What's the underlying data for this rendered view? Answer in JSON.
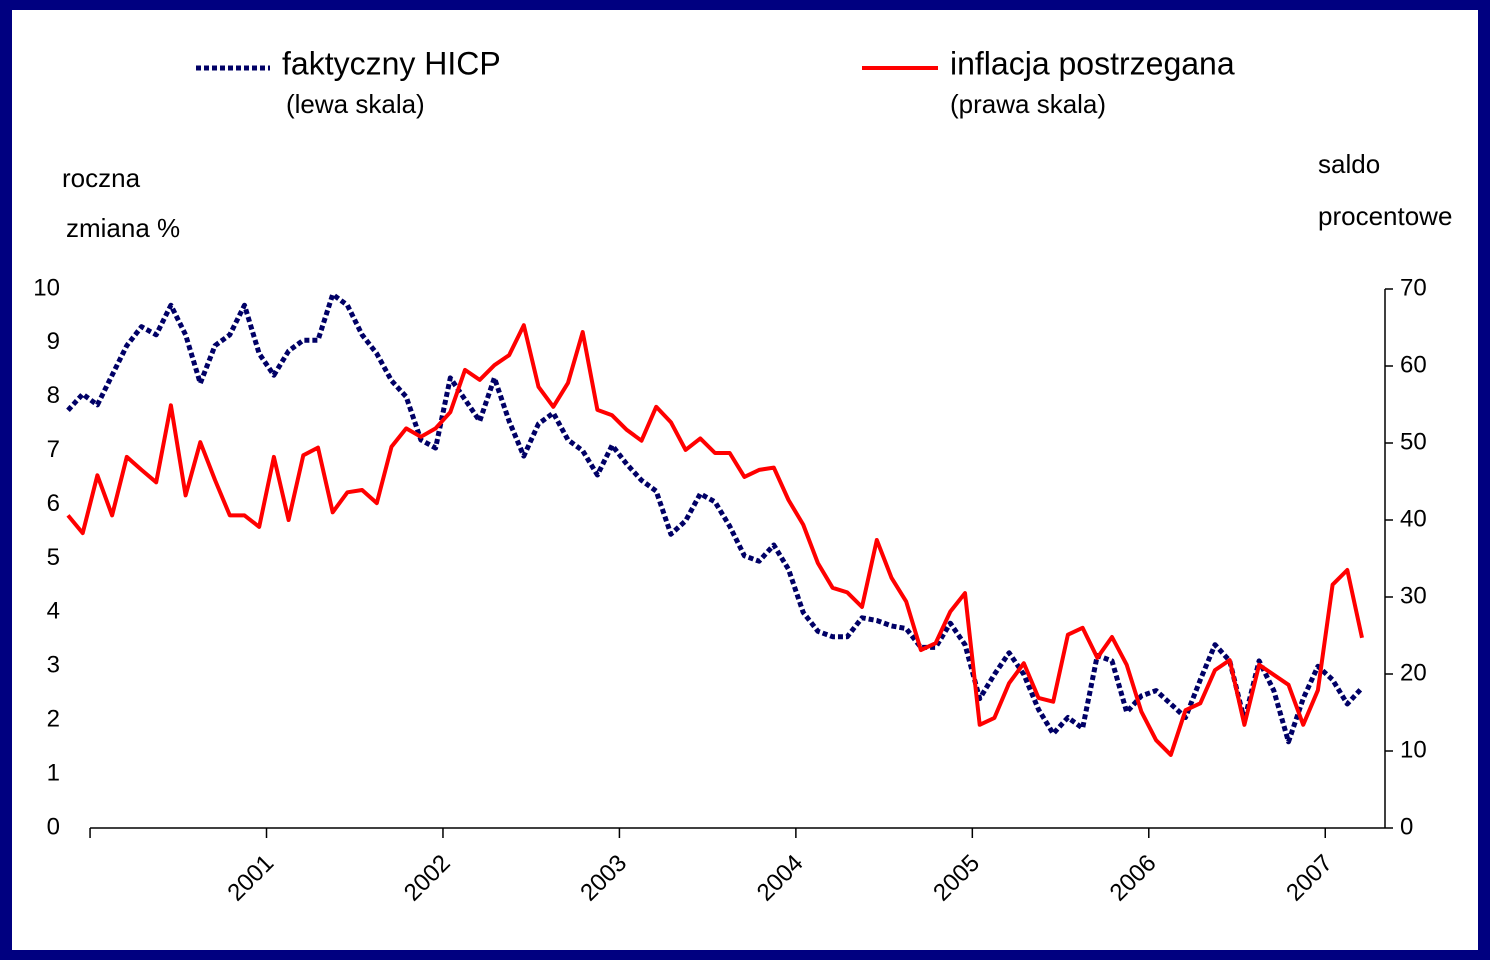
{
  "chart_data": {
    "type": "line",
    "ylabel": [
      "roczna",
      "zmiana %"
    ],
    "y2label": [
      "saldo",
      "procentowe"
    ],
    "x": [
      0,
      1,
      2,
      3,
      4,
      5,
      6,
      7,
      8,
      9,
      10,
      11,
      12,
      13,
      14,
      15,
      16,
      17,
      18,
      19,
      20,
      21,
      22,
      23,
      24,
      25,
      26,
      27,
      28,
      29,
      30,
      31,
      32,
      33,
      34,
      35,
      36,
      37,
      38,
      39,
      40,
      41,
      42,
      43,
      44,
      45,
      46,
      47,
      48,
      49,
      50,
      51,
      52,
      53,
      54,
      55,
      56,
      57,
      58,
      59,
      60,
      61,
      62,
      63,
      64,
      65,
      66,
      67,
      68,
      69,
      70,
      71,
      72,
      73,
      74,
      75,
      76,
      77,
      78,
      79,
      80,
      81,
      82,
      83,
      84,
      85,
      86,
      87,
      88
    ],
    "xlim": [
      0,
      88
    ],
    "xticks": [
      {
        "value": 1.5,
        "label": null
      },
      {
        "value": 13.5,
        "label": "2001"
      },
      {
        "value": 25.5,
        "label": "2002"
      },
      {
        "value": 37.5,
        "label": "2003"
      },
      {
        "value": 49.5,
        "label": "2004"
      },
      {
        "value": 61.5,
        "label": "2005"
      },
      {
        "value": 73.5,
        "label": "2006"
      },
      {
        "value": 85.5,
        "label": "2007"
      }
    ],
    "ylim": [
      0,
      10
    ],
    "yticks": [
      0,
      1,
      2,
      3,
      4,
      5,
      6,
      7,
      8,
      9,
      10
    ],
    "y2lim": [
      0,
      70
    ],
    "y2ticks": [
      0,
      10,
      20,
      30,
      40,
      50,
      60,
      70
    ],
    "legend_notes": [
      "(lewa skala)",
      "(prawa skala)"
    ],
    "series": [
      {
        "name": "faktyczny HICP",
        "color": "#000066",
        "dash": "dotted",
        "values": [
          7.75,
          8.05,
          7.85,
          8.4,
          8.95,
          9.3,
          9.15,
          9.7,
          9.15,
          8.25,
          8.95,
          9.15,
          9.7,
          8.8,
          8.4,
          8.85,
          9.05,
          9.05,
          9.9,
          9.7,
          9.15,
          8.8,
          8.3,
          8.0,
          7.2,
          7.05,
          8.35,
          7.95,
          7.55,
          8.35,
          7.55,
          6.9,
          7.5,
          7.7,
          7.2,
          7.0,
          6.55,
          7.1,
          6.75,
          6.45,
          6.25,
          5.45,
          5.7,
          6.2,
          6.05,
          5.6,
          5.05,
          4.95,
          5.25,
          4.8,
          4.0,
          3.65,
          3.55,
          3.55,
          3.9,
          3.85,
          3.75,
          3.7,
          3.35,
          3.35,
          3.8,
          3.4,
          2.4,
          2.85,
          3.25,
          2.85,
          2.2,
          1.75,
          2.05,
          1.85,
          3.2,
          3.1,
          2.15,
          2.45,
          2.55,
          2.3,
          2.05,
          2.75,
          3.4,
          3.1,
          2.0,
          3.1,
          2.55,
          1.6,
          2.4,
          3.0,
          2.75,
          2.3,
          2.6
        ]
      },
      {
        "name": "inflacja postrzegana",
        "color": "#ff0000",
        "axis": "y2",
        "values": [
          40.6,
          38.3,
          45.8,
          40.6,
          48.2,
          46.5,
          44.9,
          54.9,
          43.2,
          50.1,
          45.2,
          40.6,
          40.6,
          39.1,
          48.2,
          40.0,
          48.4,
          49.4,
          41.0,
          43.6,
          43.9,
          42.2,
          49.5,
          51.9,
          50.8,
          51.9,
          54.0,
          59.5,
          58.2,
          60.1,
          61.4,
          65.3,
          57.3,
          54.7,
          57.8,
          64.4,
          54.3,
          53.6,
          51.7,
          50.3,
          54.7,
          52.7,
          49.1,
          50.6,
          48.7,
          48.7,
          45.6,
          46.5,
          46.8,
          42.6,
          39.4,
          34.4,
          31.2,
          30.6,
          28.7,
          37.4,
          32.5,
          29.4,
          23.1,
          24.0,
          28.1,
          30.5,
          13.4,
          14.3,
          18.8,
          21.4,
          16.9,
          16.4,
          25.1,
          26.0,
          22.1,
          24.8,
          21.2,
          15.1,
          11.4,
          9.5,
          15.3,
          16.2,
          20.5,
          21.8,
          13.4,
          21.2,
          19.9,
          18.6,
          13.4,
          17.9,
          31.6,
          33.5,
          24.7
        ]
      }
    ]
  }
}
